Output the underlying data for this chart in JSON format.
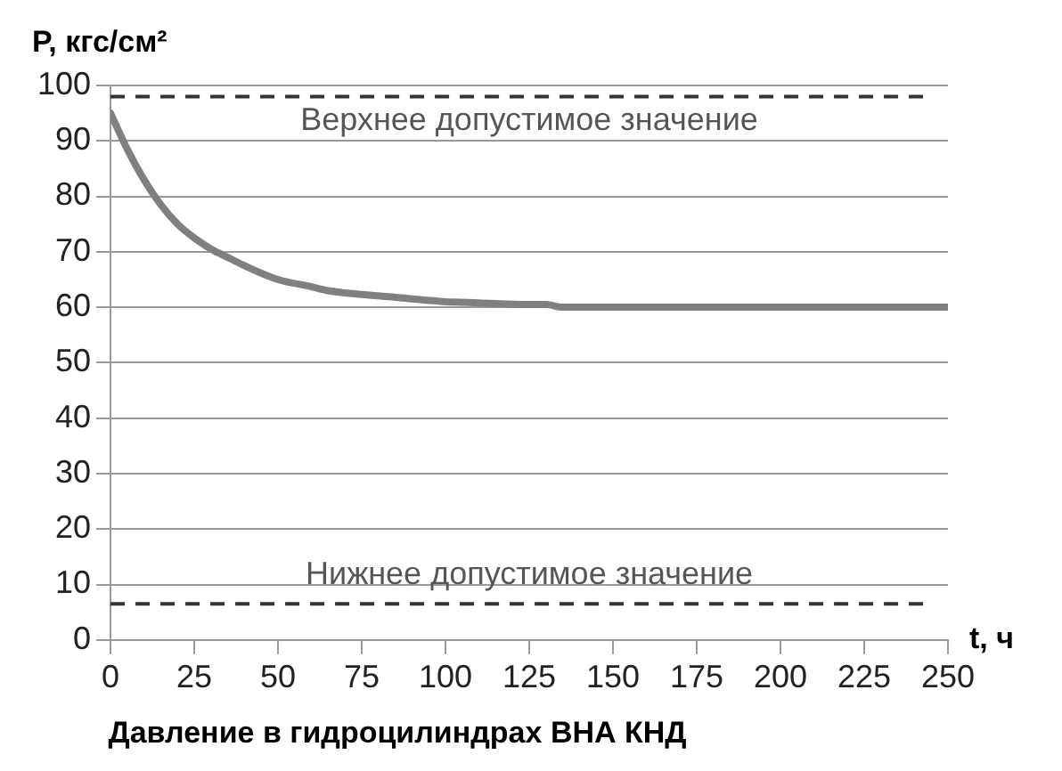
{
  "chart_data": {
    "type": "line",
    "title": "Давление в гидроцилиндрах ВНА КНД",
    "xlabel": "t, ч",
    "ylabel": "P, кгс/см²",
    "x": [
      0,
      5,
      10,
      15,
      20,
      25,
      30,
      35,
      40,
      50,
      60,
      65,
      75,
      85,
      90,
      100,
      110,
      125,
      130,
      135,
      150,
      175,
      200,
      225,
      250
    ],
    "series": [
      {
        "color": "#808080",
        "values": [
          95,
          88.5,
          83,
          78.5,
          75,
          72.5,
          70.5,
          69,
          67.5,
          65,
          63.7,
          63,
          62.3,
          61.8,
          61.5,
          61,
          60.8,
          60.5,
          60.5,
          60,
          60,
          60,
          60,
          60,
          60
        ]
      }
    ],
    "xlim": [
      0,
      250
    ],
    "xticks": [
      0,
      25,
      50,
      75,
      100,
      125,
      150,
      175,
      200,
      225,
      250
    ],
    "ylim": [
      0,
      100
    ],
    "yticks": [
      0,
      10,
      20,
      30,
      40,
      50,
      60,
      70,
      80,
      90,
      100
    ],
    "ref_lines": [
      {
        "axis": "y",
        "value": 98,
        "label": "Верхнее допустимое значение",
        "color": "#333333",
        "line_style": "dashed"
      },
      {
        "axis": "y",
        "value": 6.5,
        "label": "Нижнее допустимое значение",
        "color": "#333333",
        "line_style": "dashed"
      }
    ],
    "grid": "y",
    "legend": false,
    "marker": "none",
    "line_style": "solid"
  }
}
